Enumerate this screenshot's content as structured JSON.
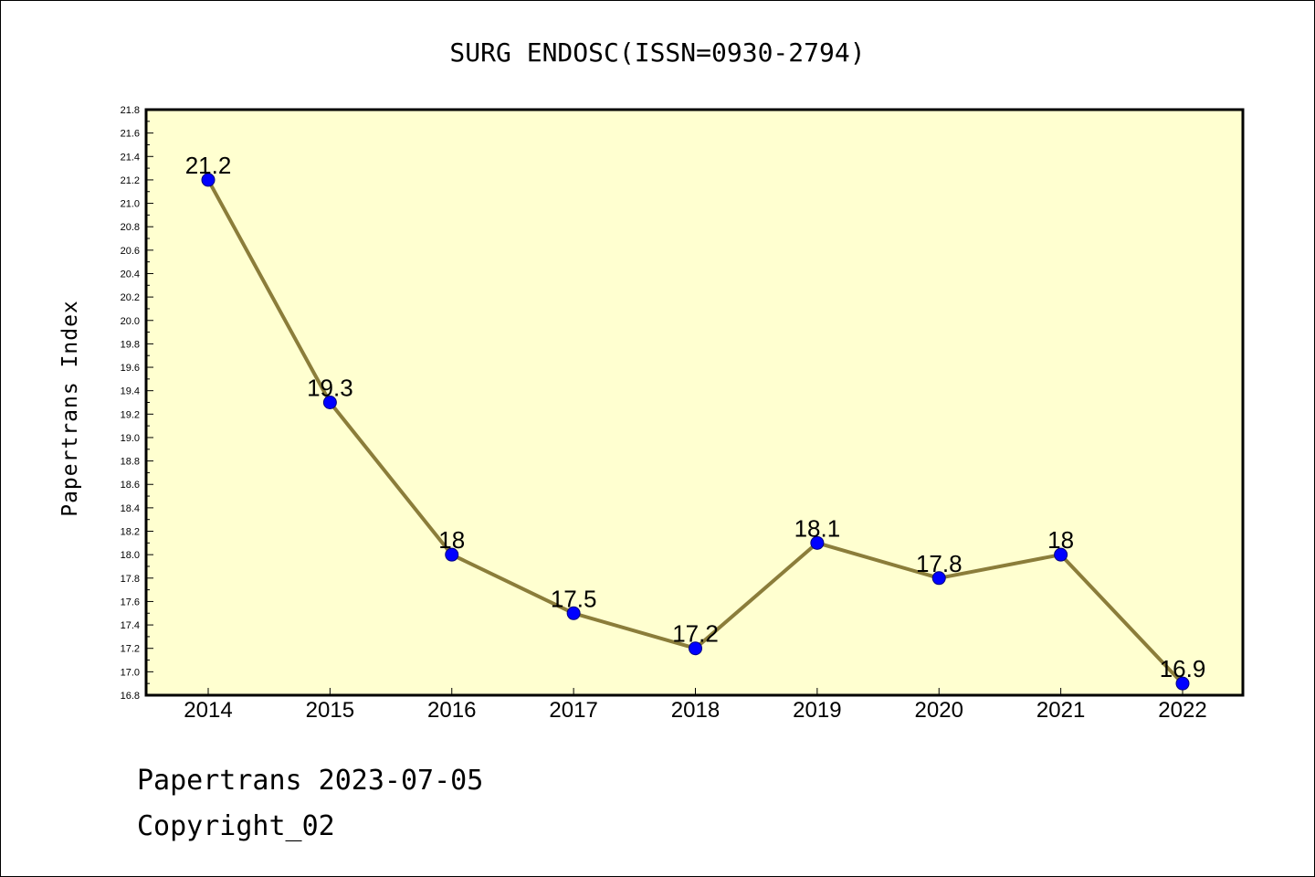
{
  "chart_data": {
    "type": "line",
    "title": "SURG ENDOSC(ISSN=0930-2794)",
    "xlabel": "",
    "ylabel": "Papertrans Index",
    "categories": [
      "2014",
      "2015",
      "2016",
      "2017",
      "2018",
      "2019",
      "2020",
      "2021",
      "2022"
    ],
    "values": [
      21.2,
      19.3,
      18,
      17.5,
      17.2,
      18.1,
      17.8,
      18,
      16.9
    ],
    "data_labels": [
      "21.2",
      "19.3",
      "18",
      "17.5",
      "17.2",
      "18.1",
      "17.8",
      "18",
      "16.9"
    ],
    "ylim": [
      16.8,
      21.8
    ],
    "yticks": [
      "16.8",
      "17.0",
      "17.2",
      "17.4",
      "17.6",
      "17.8",
      "18.0",
      "18.2",
      "18.4",
      "18.6",
      "18.8",
      "19.0",
      "19.2",
      "19.4",
      "19.6",
      "19.8",
      "20.0",
      "20.2",
      "20.4",
      "20.6",
      "20.8",
      "21.0",
      "21.2",
      "21.4",
      "21.6",
      "21.8"
    ],
    "grid": false,
    "legend": "none",
    "colors": {
      "plot_background": "#ffffd0",
      "line": "#8b7d3a",
      "marker": "#0000ff",
      "marker_edge": "#000080"
    }
  },
  "footer": {
    "line1": "Papertrans 2023-07-05",
    "line2": "Copyright_02"
  }
}
